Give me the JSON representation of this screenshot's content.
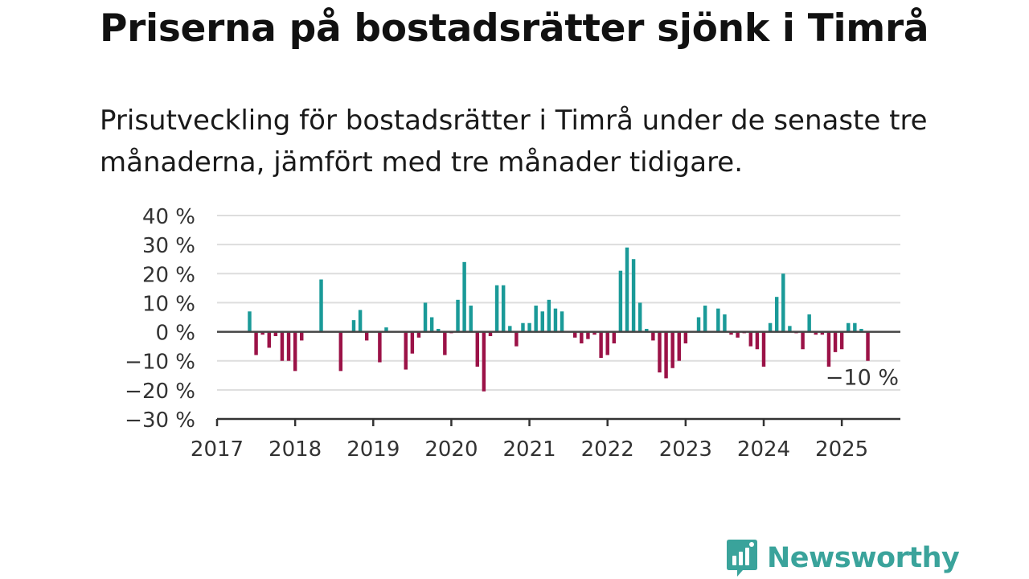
{
  "title": "Priserna på bostadsrätter sjönk i Timrå",
  "subtitle": "Prisutveckling för bostadsrätter i Timrå under de senaste tre månaderna, jämfört med tre månader tidigare.",
  "brand": {
    "name": "Newsworthy",
    "color": "#3aa39b",
    "icon": "newsworthy-logo-icon"
  },
  "colors": {
    "positive": "#1a9a98",
    "negative": "#9b1247",
    "zero_line": "#444444",
    "grid": "#dddddd"
  },
  "chart_data": {
    "type": "bar",
    "x_start": "2017-01",
    "xlim": [
      "2017-01",
      "2025-10"
    ],
    "ylim": [
      -30,
      40
    ],
    "grid": true,
    "y_ticks": [
      {
        "value": 40,
        "label": "40 %"
      },
      {
        "value": 30,
        "label": "30 %"
      },
      {
        "value": 20,
        "label": "20 %"
      },
      {
        "value": 10,
        "label": "10 %"
      },
      {
        "value": 0,
        "label": "0 %"
      },
      {
        "value": -10,
        "label": "−10 %"
      },
      {
        "value": -20,
        "label": "−20 %"
      },
      {
        "value": -30,
        "label": "−30 %"
      }
    ],
    "x_ticks": [
      {
        "date": "2017-01",
        "label": "2017"
      },
      {
        "date": "2018-01",
        "label": "2018"
      },
      {
        "date": "2019-01",
        "label": "2019"
      },
      {
        "date": "2020-01",
        "label": "2020"
      },
      {
        "date": "2021-01",
        "label": "2021"
      },
      {
        "date": "2022-01",
        "label": "2022"
      },
      {
        "date": "2023-01",
        "label": "2023"
      },
      {
        "date": "2024-01",
        "label": "2024"
      },
      {
        "date": "2025-01",
        "label": "2025"
      }
    ],
    "annotation": {
      "date": "2025-05",
      "value": -10,
      "label": "−10 %"
    },
    "values": [
      {
        "date": "2017-06",
        "value": 7
      },
      {
        "date": "2017-07",
        "value": -8
      },
      {
        "date": "2017-08",
        "value": -1
      },
      {
        "date": "2017-09",
        "value": -5.5
      },
      {
        "date": "2017-10",
        "value": -1.5
      },
      {
        "date": "2017-11",
        "value": -10
      },
      {
        "date": "2017-12",
        "value": -10
      },
      {
        "date": "2018-01",
        "value": -13.5
      },
      {
        "date": "2018-02",
        "value": -3
      },
      {
        "date": "2018-05",
        "value": 18
      },
      {
        "date": "2018-08",
        "value": -13.5
      },
      {
        "date": "2018-10",
        "value": 4
      },
      {
        "date": "2018-11",
        "value": 7.5
      },
      {
        "date": "2018-12",
        "value": -3
      },
      {
        "date": "2019-02",
        "value": -10.5
      },
      {
        "date": "2019-03",
        "value": 1.5
      },
      {
        "date": "2019-06",
        "value": -13
      },
      {
        "date": "2019-07",
        "value": -7.5
      },
      {
        "date": "2019-08",
        "value": -2
      },
      {
        "date": "2019-09",
        "value": 10
      },
      {
        "date": "2019-10",
        "value": 5
      },
      {
        "date": "2019-11",
        "value": 1
      },
      {
        "date": "2019-12",
        "value": -8
      },
      {
        "date": "2020-01",
        "value": -0.5
      },
      {
        "date": "2020-02",
        "value": 11
      },
      {
        "date": "2020-03",
        "value": 24
      },
      {
        "date": "2020-04",
        "value": 9
      },
      {
        "date": "2020-05",
        "value": -12
      },
      {
        "date": "2020-06",
        "value": -20.5
      },
      {
        "date": "2020-07",
        "value": -1.5
      },
      {
        "date": "2020-08",
        "value": 16
      },
      {
        "date": "2020-09",
        "value": 16
      },
      {
        "date": "2020-10",
        "value": 2
      },
      {
        "date": "2020-11",
        "value": -5
      },
      {
        "date": "2020-12",
        "value": 3
      },
      {
        "date": "2021-01",
        "value": 3
      },
      {
        "date": "2021-02",
        "value": 9
      },
      {
        "date": "2021-03",
        "value": 7
      },
      {
        "date": "2021-04",
        "value": 11
      },
      {
        "date": "2021-05",
        "value": 8
      },
      {
        "date": "2021-06",
        "value": 7
      },
      {
        "date": "2021-08",
        "value": -2
      },
      {
        "date": "2021-09",
        "value": -4
      },
      {
        "date": "2021-10",
        "value": -2.5
      },
      {
        "date": "2021-11",
        "value": -1
      },
      {
        "date": "2021-12",
        "value": -9
      },
      {
        "date": "2022-01",
        "value": -8
      },
      {
        "date": "2022-02",
        "value": -4
      },
      {
        "date": "2022-03",
        "value": 21
      },
      {
        "date": "2022-04",
        "value": 29
      },
      {
        "date": "2022-05",
        "value": 25
      },
      {
        "date": "2022-06",
        "value": 10
      },
      {
        "date": "2022-07",
        "value": 1
      },
      {
        "date": "2022-08",
        "value": -3
      },
      {
        "date": "2022-09",
        "value": -14
      },
      {
        "date": "2022-10",
        "value": -16
      },
      {
        "date": "2022-11",
        "value": -12.5
      },
      {
        "date": "2022-12",
        "value": -10
      },
      {
        "date": "2023-01",
        "value": -4
      },
      {
        "date": "2023-03",
        "value": 5
      },
      {
        "date": "2023-04",
        "value": 9
      },
      {
        "date": "2023-06",
        "value": 8
      },
      {
        "date": "2023-07",
        "value": 6
      },
      {
        "date": "2023-08",
        "value": -1
      },
      {
        "date": "2023-09",
        "value": -2
      },
      {
        "date": "2023-10",
        "value": -0.5
      },
      {
        "date": "2023-11",
        "value": -5
      },
      {
        "date": "2023-12",
        "value": -6
      },
      {
        "date": "2024-01",
        "value": -12
      },
      {
        "date": "2024-02",
        "value": 3
      },
      {
        "date": "2024-03",
        "value": 12
      },
      {
        "date": "2024-04",
        "value": 20
      },
      {
        "date": "2024-05",
        "value": 2
      },
      {
        "date": "2024-06",
        "value": -0.5
      },
      {
        "date": "2024-07",
        "value": -6
      },
      {
        "date": "2024-08",
        "value": 6
      },
      {
        "date": "2024-09",
        "value": -1
      },
      {
        "date": "2024-10",
        "value": -1
      },
      {
        "date": "2024-11",
        "value": -12
      },
      {
        "date": "2024-12",
        "value": -7
      },
      {
        "date": "2025-01",
        "value": -6
      },
      {
        "date": "2025-02",
        "value": 3
      },
      {
        "date": "2025-03",
        "value": 3
      },
      {
        "date": "2025-04",
        "value": 1
      },
      {
        "date": "2025-05",
        "value": -10
      }
    ]
  }
}
